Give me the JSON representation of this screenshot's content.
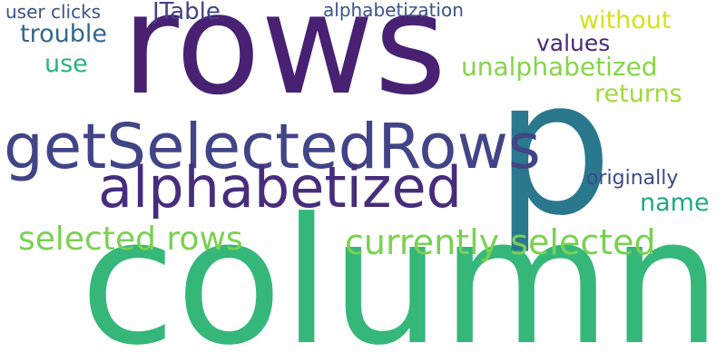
{
  "words": {
    "column": {
      "text": "column",
      "color": "#35b779"
    },
    "rows": {
      "text": "rows",
      "color": "#482173"
    },
    "p": {
      "text": "p",
      "color": "#2a788e"
    },
    "getSelectedRows": {
      "text": "getSelectedRows",
      "color": "#414487"
    },
    "alphabetized": {
      "text": "alphabetized",
      "color": "#472d7b"
    },
    "currentlySelected": {
      "text": "currently selected",
      "color": "#7ad151"
    },
    "selectedRows": {
      "text": "selected rows",
      "color": "#7ad151"
    },
    "userClicks": {
      "text": "user clicks",
      "color": "#3b528b"
    },
    "jtable": {
      "text": "JTable",
      "color": "#414487"
    },
    "alphabetization": {
      "text": "alphabetization",
      "color": "#3b528b"
    },
    "without": {
      "text": "without",
      "color": "#d4e21a"
    },
    "trouble": {
      "text": "trouble",
      "color": "#31688e"
    },
    "values": {
      "text": "values",
      "color": "#482878"
    },
    "use": {
      "text": "use",
      "color": "#2db27d"
    },
    "unalphabetized": {
      "text": "unalphabetized",
      "color": "#86d549"
    },
    "returns": {
      "text": "returns",
      "color": "#a0da39"
    },
    "originally": {
      "text": "originally",
      "color": "#3e4a89"
    },
    "name": {
      "text": "name",
      "color": "#22a884"
    }
  }
}
